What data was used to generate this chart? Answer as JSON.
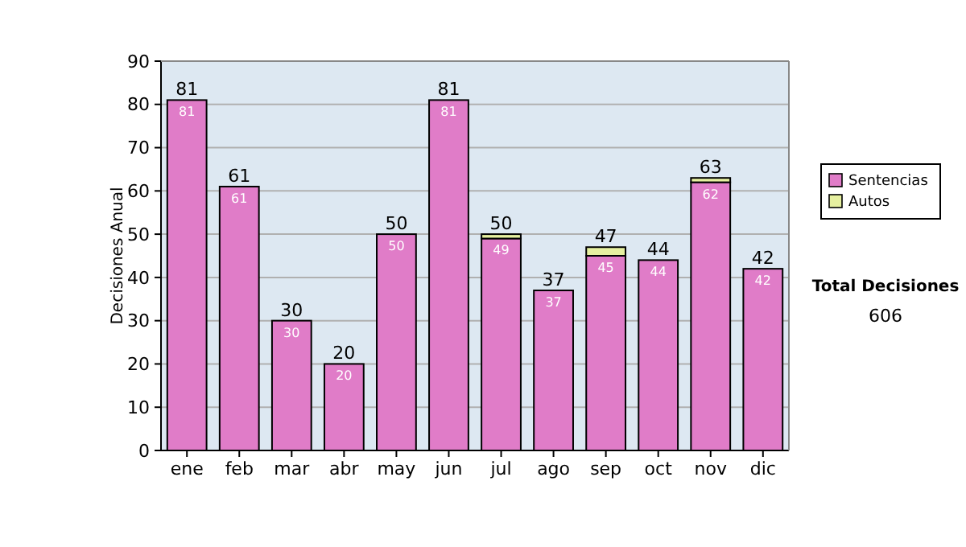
{
  "chart_data": {
    "type": "bar",
    "stacked": true,
    "ylabel": "Decisiones Anual",
    "categories": [
      "ene",
      "feb",
      "mar",
      "abr",
      "may",
      "jun",
      "jul",
      "ago",
      "sep",
      "oct",
      "nov",
      "dic"
    ],
    "series": [
      {
        "name": "Sentencias",
        "color": "#e07cc8",
        "values": [
          81,
          61,
          30,
          20,
          50,
          81,
          49,
          37,
          45,
          44,
          62,
          42
        ],
        "value_labels": [
          "81",
          "61",
          "30",
          "20",
          "50",
          "81",
          "49",
          "37",
          "45",
          "44",
          "62",
          "42"
        ]
      },
      {
        "name": "Autos",
        "color": "#e6f0a0",
        "values": [
          0,
          0,
          0,
          0,
          0,
          0,
          1,
          0,
          2,
          0,
          1,
          0
        ]
      }
    ],
    "totals": [
      "81",
      "61",
      "30",
      "20",
      "50",
      "81",
      "50",
      "37",
      "47",
      "44",
      "63",
      "42"
    ],
    "ylim": [
      0,
      90
    ],
    "yticks": [
      0,
      10,
      20,
      30,
      40,
      50,
      60,
      70,
      80,
      90
    ],
    "grid": "y",
    "legend": "right",
    "annotations": [
      "Total Decisiones",
      "606"
    ]
  }
}
